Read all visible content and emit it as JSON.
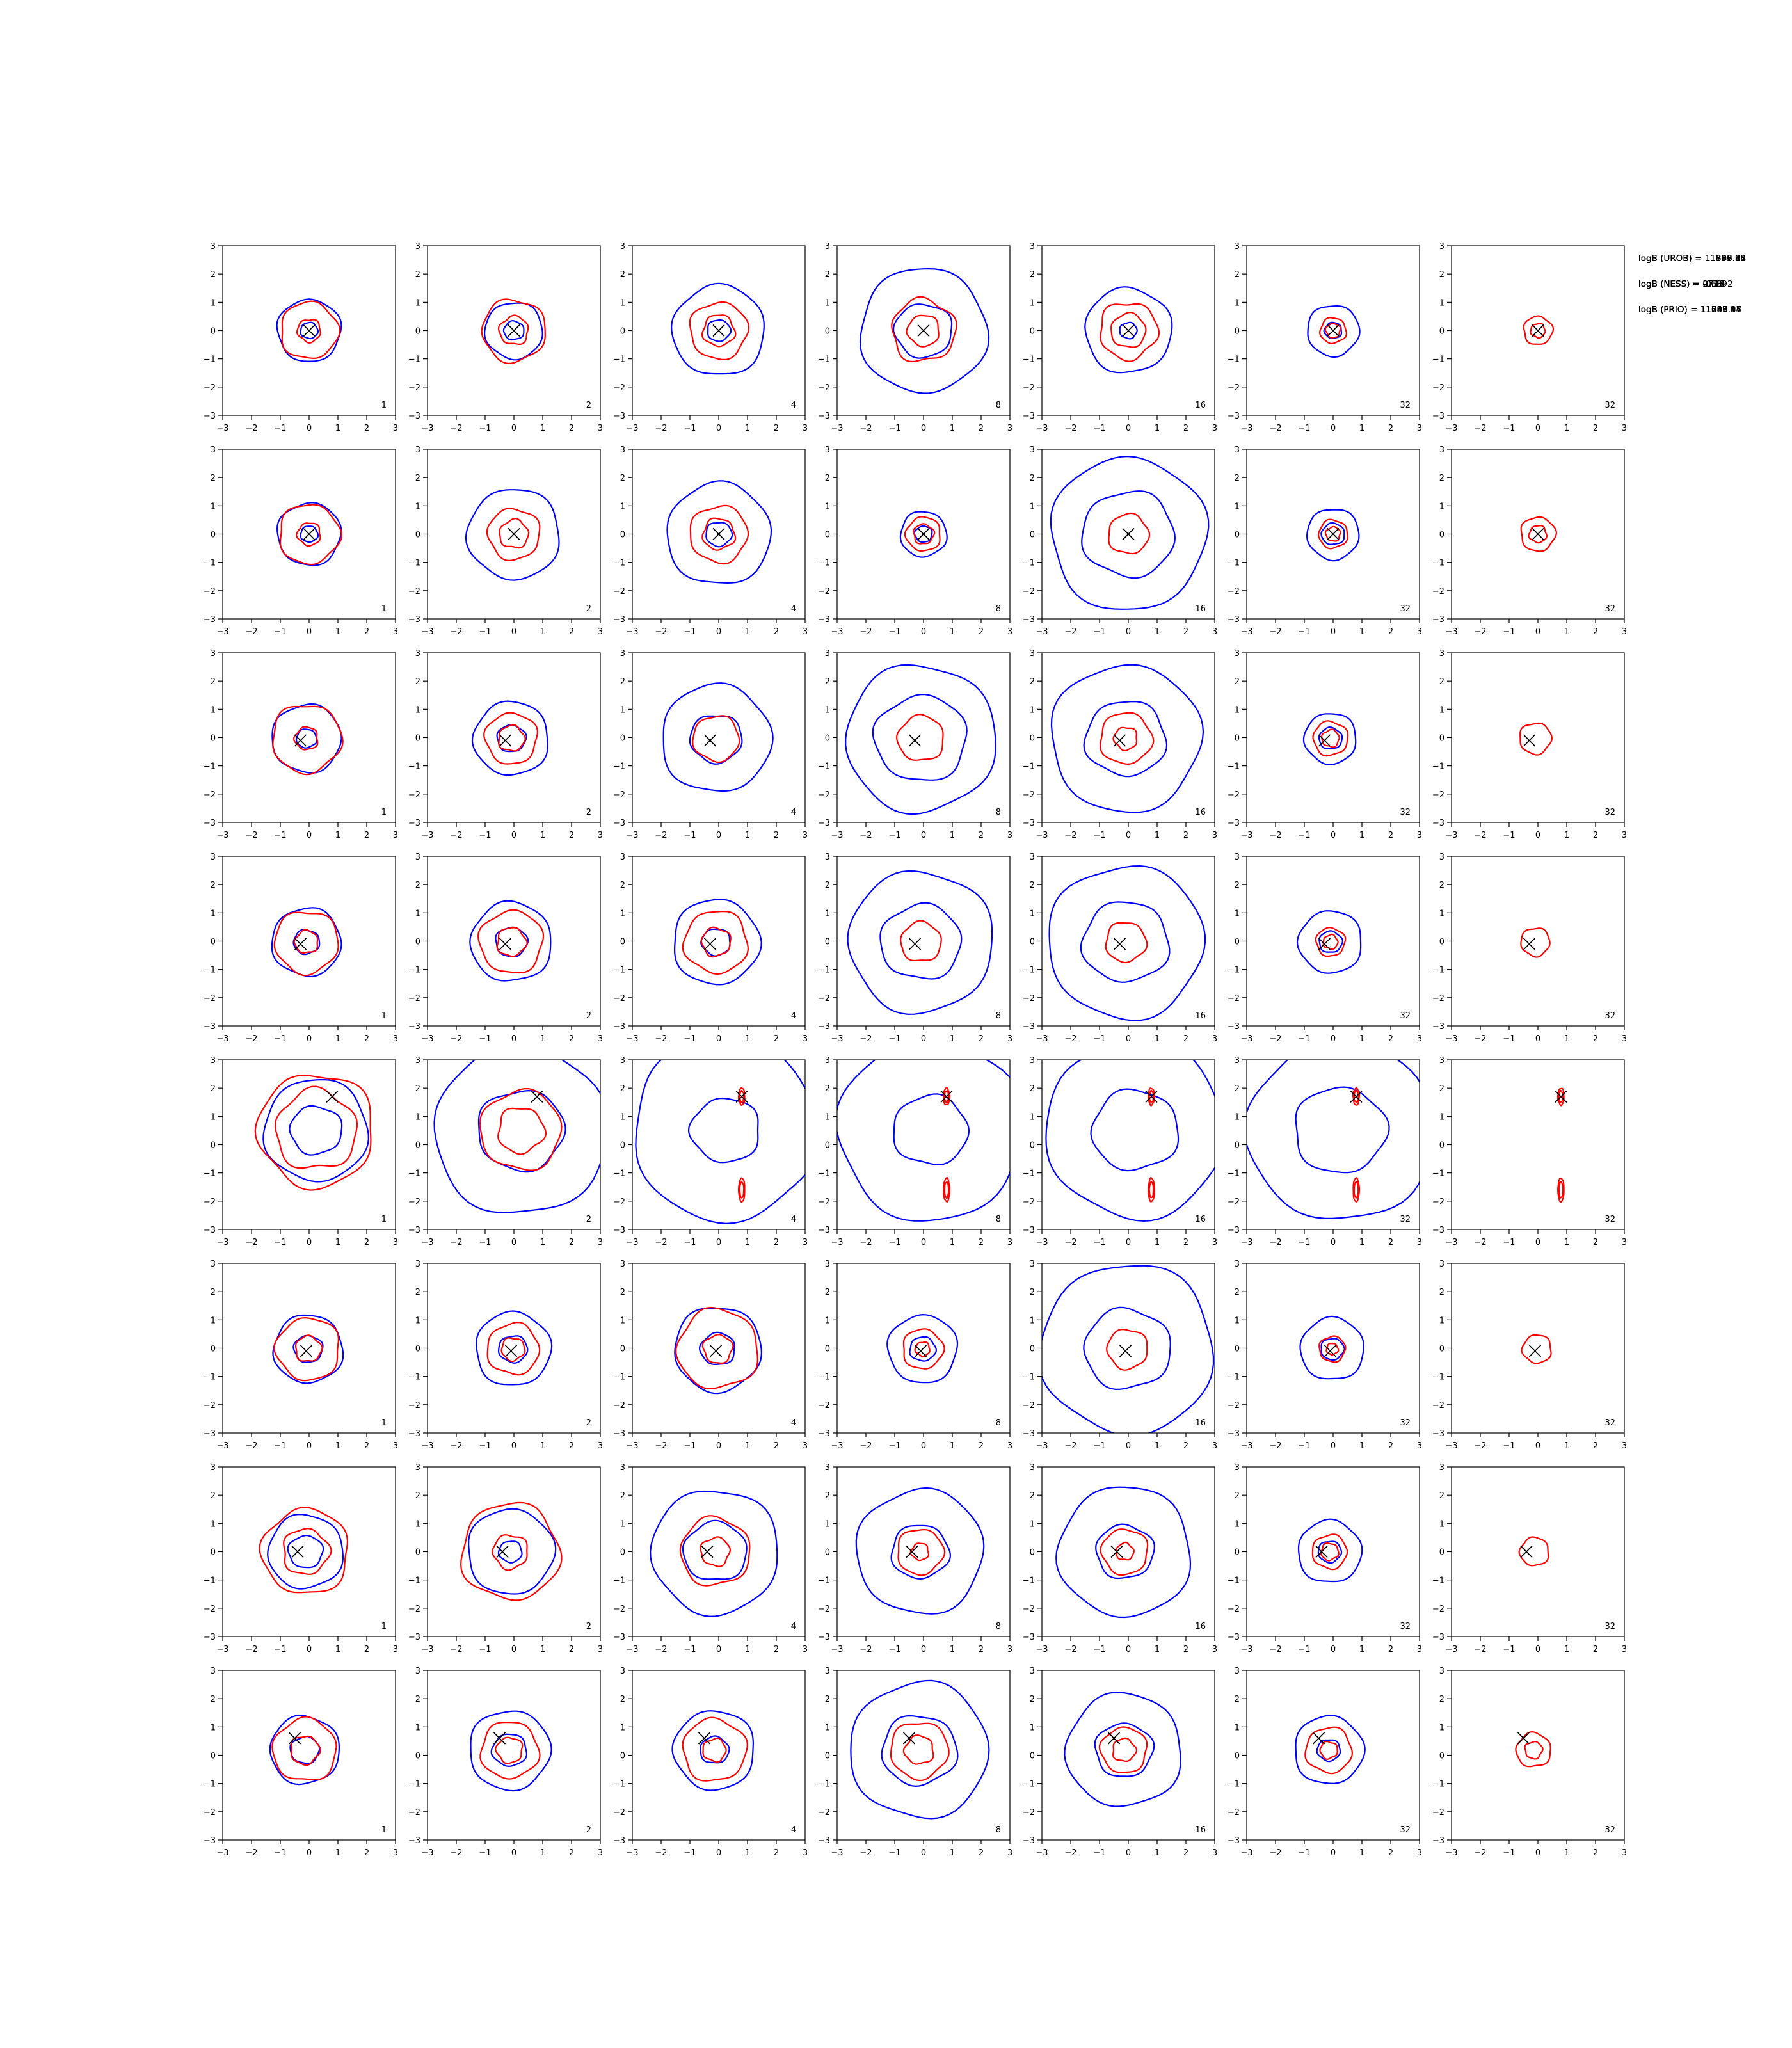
{
  "colors": {
    "proposal": "#0000ff",
    "posterior": "#ff0000",
    "marker": "#000000"
  },
  "chart_data": {
    "type": "contour-grid",
    "rows": 8,
    "columns": 7,
    "xlim": [
      -3,
      3
    ],
    "ylim": [
      -3,
      3
    ],
    "x_tick_labels": [
      "−3",
      "−2",
      "−1",
      "0",
      "1",
      "2",
      "3"
    ],
    "y_tick_labels": [
      "3",
      "2",
      "1",
      "0",
      "−1",
      "−2",
      "−3"
    ],
    "column_labels": [
      "1",
      "2",
      "4",
      "8",
      "16",
      "32",
      "32"
    ],
    "rows_data": [
      {
        "marker": [
          0.0,
          0.0
        ],
        "stats": [
          "logB (UROB) = 11547.03",
          "logB (NESS) = -0.73",
          "logB (PRIO) = 11547.03"
        ],
        "blue": [
          [
            1.1,
            0.3
          ],
          [
            1.0,
            0.35
          ],
          [
            1.6,
            0.4
          ],
          [
            2.2,
            1.0
          ],
          [
            1.5,
            0.3
          ],
          [
            0.9,
            0.3
          ],
          [
            0.0,
            0.0
          ]
        ],
        "red": [
          [
            1.0,
            0.4
          ],
          [
            1.1,
            0.5
          ],
          [
            1.0,
            0.55
          ],
          [
            0.55,
            1.1
          ],
          [
            0.6,
            1.0
          ],
          [
            0.45,
            0.25
          ],
          [
            0.5,
            0.25
          ]
        ]
      },
      {
        "marker": [
          0.0,
          0.0
        ],
        "stats": [
          "logB (UROB) = 11593.14",
          "logB (NESS) = -0.24",
          "logB (PRIO) = 11593.14"
        ],
        "blue": [
          [
            1.1,
            0.3
          ],
          [
            1.6,
            0.0
          ],
          [
            1.8,
            0.45
          ],
          [
            0.8,
            0.3
          ],
          [
            2.7,
            1.6
          ],
          [
            0.9,
            0.4
          ],
          [
            0.0,
            0.0
          ]
        ],
        "red": [
          [
            1.05,
            0.4
          ],
          [
            0.9,
            0.5
          ],
          [
            1.0,
            0.55
          ],
          [
            0.6,
            0.35
          ],
          [
            0.7,
            0.0
          ],
          [
            0.5,
            0.25
          ],
          [
            0.6,
            0.3
          ]
        ]
      },
      {
        "marker": [
          -0.3,
          -0.1
        ],
        "stats": [
          "logB (UROB) = 11746.95",
          "logB (NESS) = 0.60",
          "logB (PRIO) = 11746.95"
        ],
        "blue": [
          [
            1.2,
            0.35
          ],
          [
            1.3,
            0.5
          ],
          [
            1.9,
            0.9
          ],
          [
            2.6,
            1.6
          ],
          [
            2.6,
            1.4
          ],
          [
            0.9,
            0.4
          ],
          [
            0.0,
            0.0
          ]
        ],
        "red": [
          [
            1.2,
            0.4
          ],
          [
            0.9,
            0.45
          ],
          [
            0.8,
            0.0
          ],
          [
            0.8,
            0.0
          ],
          [
            0.9,
            0.4
          ],
          [
            0.6,
            0.3
          ],
          [
            0.55,
            0.0
          ]
        ]
      },
      {
        "marker": [
          -0.3,
          -0.1
        ],
        "stats": [
          "logB (UROB) = 11647.37",
          "logB (NESS) = -0.43",
          "logB (PRIO) = 11647.37"
        ],
        "blue": [
          [
            1.2,
            0.45
          ],
          [
            1.4,
            0.55
          ],
          [
            1.5,
            0.5
          ],
          [
            2.5,
            1.4
          ],
          [
            2.7,
            1.5
          ],
          [
            1.1,
            0.4
          ],
          [
            0.0,
            0.0
          ]
        ],
        "red": [
          [
            1.1,
            0.4
          ],
          [
            1.1,
            0.5
          ],
          [
            1.1,
            0.5
          ],
          [
            0.7,
            0.0
          ],
          [
            0.7,
            0.0
          ],
          [
            0.5,
            0.25
          ],
          [
            0.5,
            0.0
          ]
        ]
      },
      {
        "marker": [
          0.8,
          1.7
        ],
        "stats": [
          "logB (UROB) = 11896.05",
          "logB (NESS) = 273.92",
          "logB (PRIO) = 11896.05"
        ],
        "blue": [
          [
            1.8,
            0.9
          ],
          [
            3.0,
            1.5
          ],
          [
            3.2,
            1.2
          ],
          [
            3.2,
            1.3
          ],
          [
            3.1,
            1.5
          ],
          [
            3.2,
            1.6
          ],
          [
            0.0,
            0.0
          ]
        ],
        "red": [
          [
            2.0,
            1.4
          ],
          [
            1.4,
            0.8
          ],
          [
            0.3,
            0.2
          ],
          [
            0.3,
            0.2
          ],
          [
            0.3,
            0.2
          ],
          [
            0.3,
            0.2
          ],
          [
            0.3,
            0.2
          ]
        ]
      },
      {
        "marker": [
          -0.1,
          -0.1
        ],
        "stats": [
          "logB (UROB) = 11635.97",
          "logB (NESS) = -0.72",
          "logB (PRIO) = 11635.97"
        ],
        "blue": [
          [
            1.2,
            0.5
          ],
          [
            1.3,
            0.5
          ],
          [
            1.5,
            0.6
          ],
          [
            1.2,
            0.45
          ],
          [
            3.0,
            1.5
          ],
          [
            1.1,
            0.4
          ],
          [
            0.0,
            0.0
          ]
        ],
        "red": [
          [
            1.1,
            0.45
          ],
          [
            0.9,
            0.4
          ],
          [
            1.4,
            0.5
          ],
          [
            0.7,
            0.25
          ],
          [
            0.7,
            0.0
          ],
          [
            0.45,
            0.2
          ],
          [
            0.5,
            0.0
          ]
        ]
      },
      {
        "marker": [
          -0.4,
          0.0
        ],
        "stats": [
          "logB (UROB) = 11633.17",
          "logB (NESS) = -0.19",
          "logB (PRIO) = 11633.17"
        ],
        "blue": [
          [
            1.3,
            0.6
          ],
          [
            1.5,
            0.4
          ],
          [
            2.2,
            1.1
          ],
          [
            2.2,
            1.0
          ],
          [
            2.3,
            1.0
          ],
          [
            1.1,
            0.4
          ],
          [
            0.0,
            0.0
          ]
        ],
        "red": [
          [
            1.5,
            0.8
          ],
          [
            1.7,
            0.6
          ],
          [
            1.2,
            0.5
          ],
          [
            0.8,
            0.3
          ],
          [
            0.8,
            0.3
          ],
          [
            0.6,
            0.3
          ],
          [
            0.5,
            0.0
          ]
        ]
      },
      {
        "marker": [
          -0.5,
          0.6
        ],
        "stats": [
          "logB (UROB) = 11709.44",
          "logB (NESS) = 0.63",
          "logB (PRIO) = 11709.44"
        ],
        "blue": [
          [
            1.2,
            0.5
          ],
          [
            1.4,
            0.6
          ],
          [
            1.4,
            0.5
          ],
          [
            2.4,
            1.3
          ],
          [
            2.0,
            1.0
          ],
          [
            1.2,
            0.4
          ],
          [
            0.0,
            0.0
          ]
        ],
        "red": [
          [
            1.1,
            0.5
          ],
          [
            1.0,
            0.45
          ],
          [
            1.1,
            0.4
          ],
          [
            1.0,
            0.5
          ],
          [
            0.8,
            0.4
          ],
          [
            0.8,
            0.3
          ],
          [
            0.6,
            0.3
          ]
        ]
      }
    ]
  }
}
